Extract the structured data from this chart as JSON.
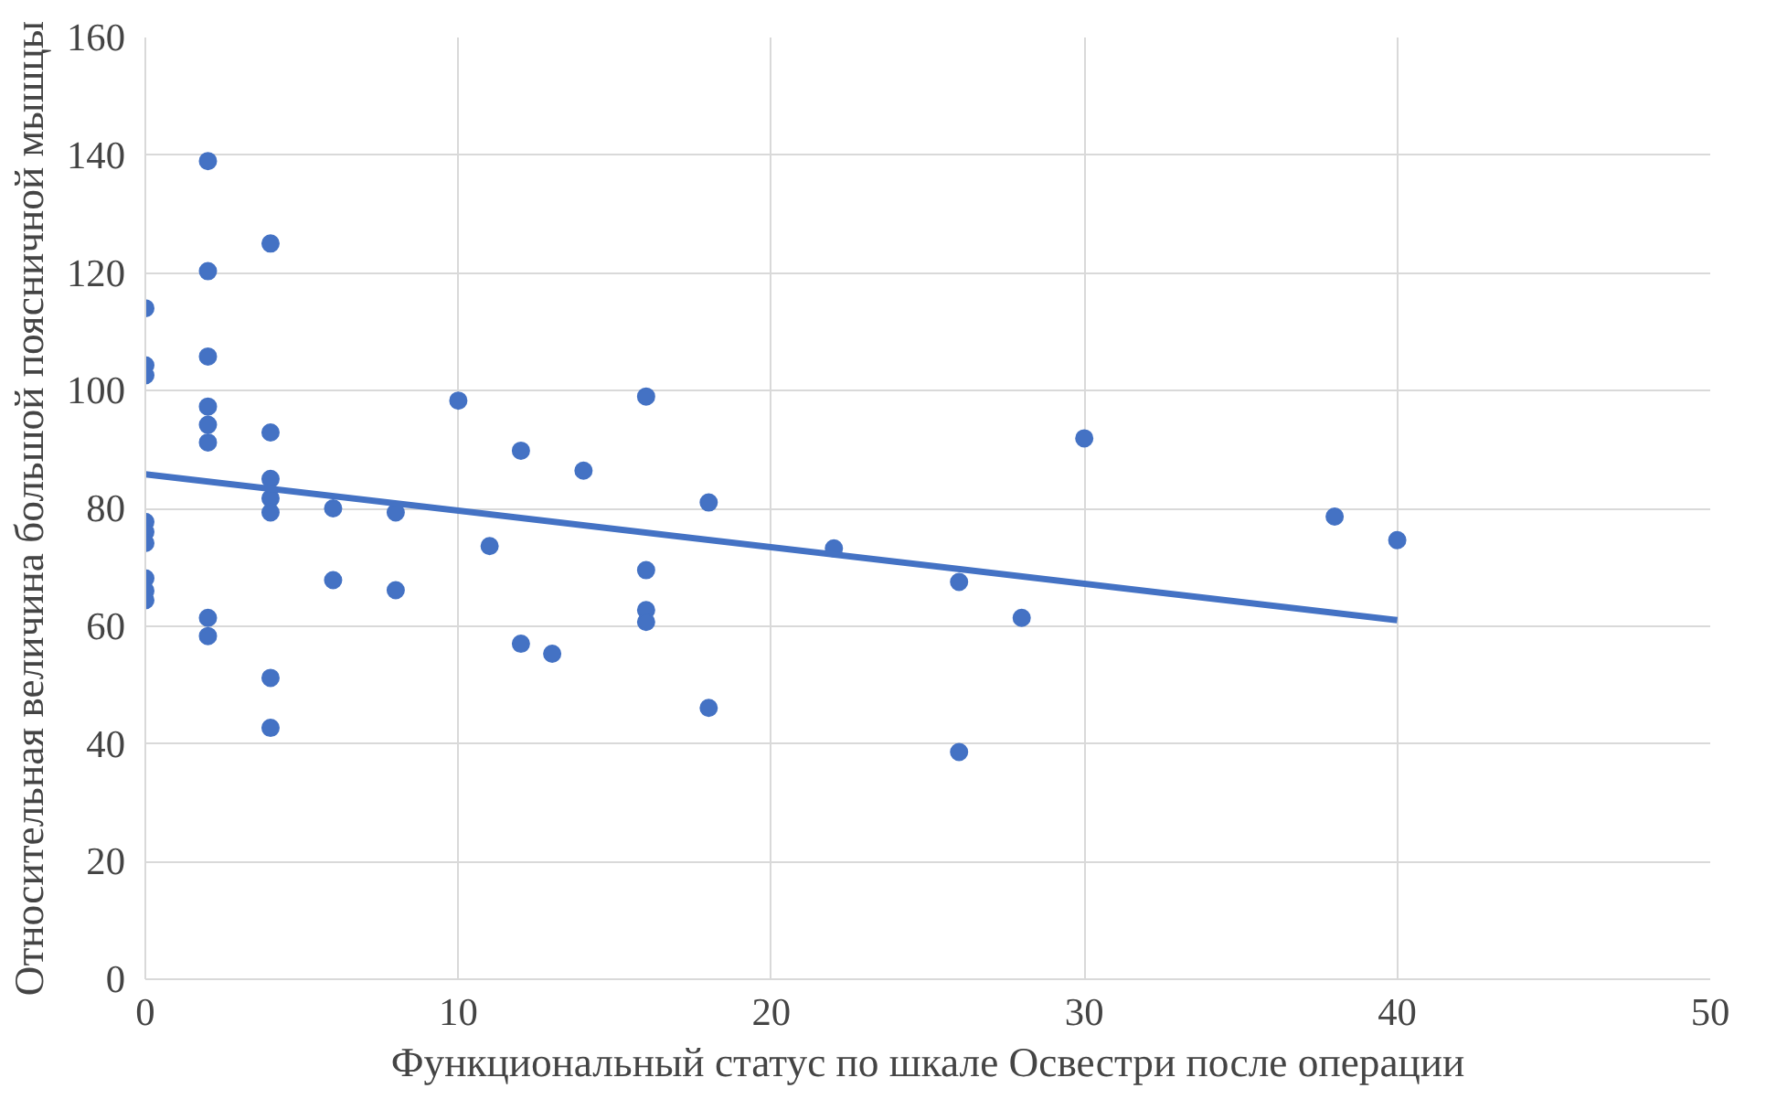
{
  "chart_data": {
    "type": "scatter",
    "xlabel": "Функциональный статус по шкале Освестри после операции",
    "ylabel": "Относительная величина большой поясничной мышцы",
    "xlim": [
      0,
      50
    ],
    "ylim": [
      0,
      160
    ],
    "xticks": [
      0,
      10,
      20,
      30,
      40,
      50
    ],
    "yticks": [
      0,
      20,
      40,
      60,
      80,
      100,
      120,
      140,
      160
    ],
    "grid": true,
    "series": [
      {
        "color": "#4472c4",
        "marker": "circle",
        "x": [
          0,
          0,
          0,
          0,
          0,
          0,
          0,
          0,
          0,
          2,
          2,
          2,
          2,
          2,
          2,
          2,
          2,
          4,
          4,
          4,
          4,
          4,
          4,
          4,
          6,
          6,
          8,
          8,
          10,
          11,
          12,
          12,
          13,
          14,
          16,
          16,
          16,
          16,
          18,
          18,
          22,
          26,
          26,
          28,
          30,
          38,
          40
        ],
        "values": [
          114,
          104.3,
          102.6,
          77.7,
          76,
          74.1,
          68.1,
          66,
          64.4,
          139,
          120.3,
          105.8,
          97.3,
          94.2,
          91.2,
          61.4,
          58.3,
          125,
          92.9,
          85,
          81.7,
          79.3,
          51.2,
          42.7,
          80,
          67.8,
          79.3,
          66.1,
          98.3,
          73.6,
          89.8,
          57,
          55.3,
          86.4,
          99,
          69.5,
          62.7,
          60.7,
          81,
          46.1,
          73.2,
          67.5,
          38.6,
          61.4,
          91.9,
          78.6,
          74.6
        ]
      },
      {
        "type": "line",
        "color": "#4472c4",
        "x": [
          0,
          40
        ],
        "values": [
          85.8,
          61
        ]
      }
    ]
  }
}
